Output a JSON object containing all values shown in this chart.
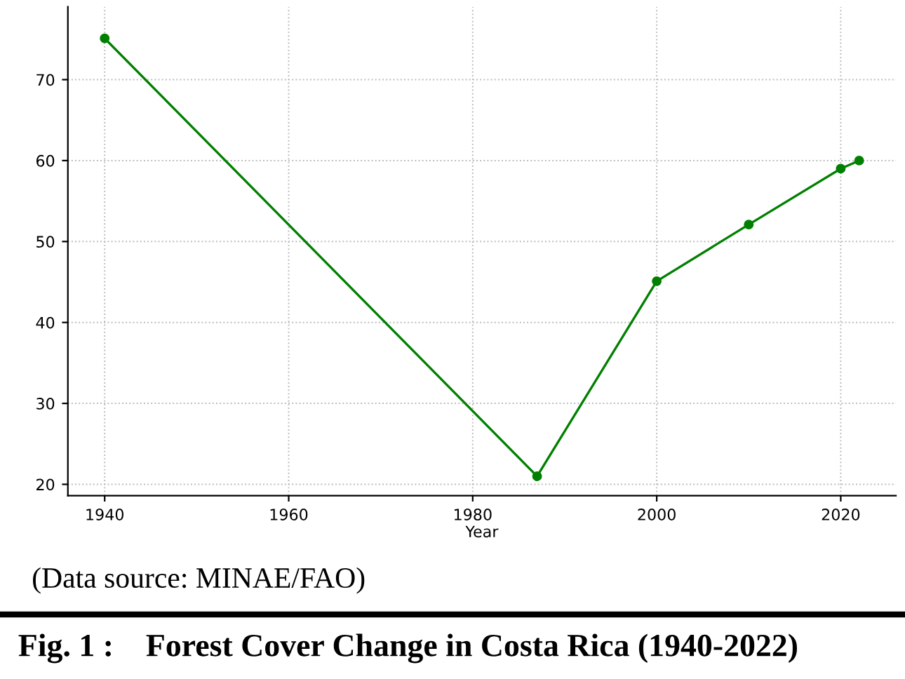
{
  "chart_data": {
    "type": "line",
    "xlabel": "Year",
    "x": [
      1940,
      1987,
      2000,
      2010,
      2020,
      2022
    ],
    "series": [
      {
        "color": "#008000",
        "values": [
          75.1,
          21.0,
          45.1,
          52.1,
          59.0,
          60.0
        ]
      }
    ],
    "xlim": [
      1936,
      2026
    ],
    "xticks": [
      1940,
      1960,
      1980,
      2000,
      2020
    ],
    "ylim": [
      18.6,
      79
    ],
    "yticks": [
      20,
      30,
      40,
      50,
      60,
      70
    ],
    "grid": true,
    "marker": "circle",
    "line_style": "solid",
    "annotations": [
      "(Data source: MINAE/FAO)"
    ],
    "title": "Fig. 1 :    Forest Cover Change in Costa Rica (1940-2022)"
  }
}
